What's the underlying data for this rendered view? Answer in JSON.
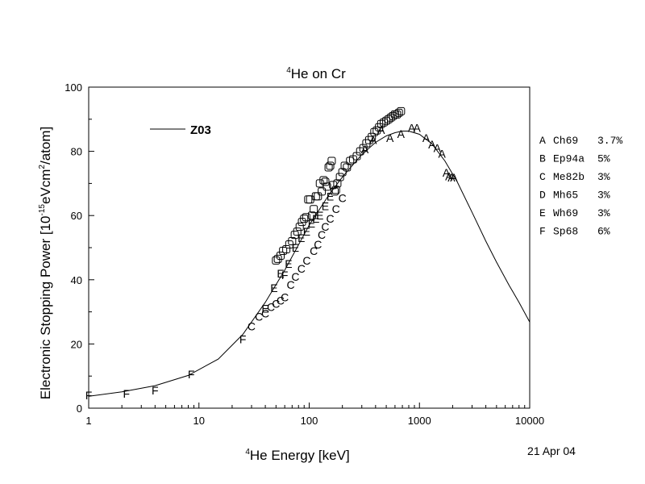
{
  "chart_data": {
    "type": "scatter",
    "title_prefix": "4",
    "title_main": "He on Cr",
    "xlabel_prefix": "4",
    "xlabel_main": "He Energy [keV]",
    "ylabel_a": "Electronic Stopping Power [10",
    "ylabel_exp1": "-15",
    "ylabel_b": "eVcm",
    "ylabel_exp2": "2",
    "ylabel_c": "/atom]",
    "date": "21 Apr 04",
    "x_scale": "log",
    "xlim": [
      1,
      10000
    ],
    "ylim": [
      0,
      100
    ],
    "x_ticks": [
      {
        "value": 1,
        "label": "1"
      },
      {
        "value": 10,
        "label": "10"
      },
      {
        "value": 100,
        "label": "100"
      },
      {
        "value": 1000,
        "label": "1000"
      },
      {
        "value": 10000,
        "label": "10000"
      }
    ],
    "y_ticks": [
      {
        "value": 0,
        "label": "0"
      },
      {
        "value": 20,
        "label": "20"
      },
      {
        "value": 40,
        "label": "40"
      },
      {
        "value": 60,
        "label": "60"
      },
      {
        "value": 80,
        "label": "80"
      },
      {
        "value": 100,
        "label": "100"
      }
    ],
    "line_legend": "Z03",
    "curve": {
      "x": [
        1,
        2,
        4,
        8,
        15,
        25,
        40,
        60,
        100,
        150,
        200,
        300,
        400,
        500,
        600,
        700,
        800,
        1000,
        1300,
        1700,
        2200,
        3000,
        4000,
        5000,
        6500,
        8000,
        10000
      ],
      "y": [
        3.7,
        5.1,
        7.0,
        10.2,
        15.3,
        23.0,
        33.0,
        43.0,
        57.0,
        66.3,
        72.0,
        79.0,
        82.8,
        84.8,
        85.8,
        86.3,
        86.3,
        85.3,
        82.3,
        77.0,
        70.5,
        61.0,
        52.0,
        45.5,
        38.3,
        33.0,
        26.8
      ]
    },
    "series": [
      {
        "marker": "A",
        "legend_id": "Ch69",
        "legend_err": "3.7%",
        "x": [
          320,
          380,
          450,
          540,
          680,
          850,
          950,
          1150,
          1300,
          1450,
          1600,
          1750,
          1850,
          1950,
          2050
        ],
        "y": [
          80.6,
          83.5,
          86.7,
          84.2,
          85.4,
          87.3,
          87.3,
          84.2,
          82.2,
          81.0,
          79.3,
          73.4,
          72.2,
          71.8,
          71.8
        ]
      },
      {
        "marker": "B",
        "legend_id": "Ep94a",
        "legend_err": "5%",
        "x": [],
        "y": []
      },
      {
        "marker": "C",
        "legend_id": "Me82b",
        "legend_err": "3%",
        "x": [
          30,
          35,
          40,
          45,
          50,
          55,
          60,
          68,
          75,
          85,
          95,
          110,
          120,
          130,
          140,
          155,
          175,
          200
        ],
        "y": [
          25.5,
          28.5,
          29.5,
          31.5,
          32.5,
          33.5,
          34.5,
          38.5,
          41.0,
          43.5,
          46.0,
          49.0,
          51.0,
          54.0,
          56.5,
          59.0,
          62.0,
          65.5
        ]
      },
      {
        "marker": "D",
        "legend_id": "Mh65",
        "legend_err": "3%",
        "x": [
          50,
          52,
          55,
          58,
          62,
          66,
          70,
          74,
          78,
          82,
          86,
          90,
          94,
          98,
          102,
          106,
          110,
          115,
          120,
          125,
          130,
          135,
          140,
          145,
          150,
          155,
          160,
          165,
          170,
          175,
          180,
          190,
          200,
          210,
          220,
          235,
          250,
          270,
          290,
          310,
          330,
          350,
          370,
          390,
          410,
          430,
          450,
          475,
          500,
          525,
          550,
          575,
          600,
          625,
          650,
          680
        ],
        "y": [
          46,
          46.5,
          47.5,
          49,
          49.5,
          51,
          52,
          54,
          55,
          56.5,
          58,
          59,
          59.5,
          65,
          65,
          60,
          62,
          66,
          66,
          70,
          67.5,
          71,
          70.5,
          69,
          75,
          75.5,
          77,
          69.5,
          67.5,
          68,
          70,
          72,
          73.5,
          75.5,
          75,
          77,
          77.5,
          78.5,
          80,
          81,
          82.5,
          83.5,
          84.5,
          86,
          86.5,
          87.5,
          88.5,
          89,
          89.5,
          90,
          90.5,
          91,
          91.5,
          91.5,
          92,
          92.5
        ]
      },
      {
        "marker": "E",
        "legend_id": "Wh69",
        "legend_err": "3%",
        "x": [
          40,
          48,
          55,
          65,
          75,
          85,
          95,
          105,
          115,
          125,
          140,
          155
        ],
        "y": [
          31,
          37.5,
          42,
          45,
          50,
          53,
          55,
          57.5,
          59,
          60,
          63,
          66
        ]
      },
      {
        "marker": "F",
        "legend_id": "Sp68",
        "legend_err": "6%",
        "x": [
          1,
          2.2,
          4,
          8.5,
          25,
          60
        ],
        "y": [
          4,
          4.5,
          5.5,
          10.5,
          21.5,
          41.5
        ]
      }
    ]
  }
}
